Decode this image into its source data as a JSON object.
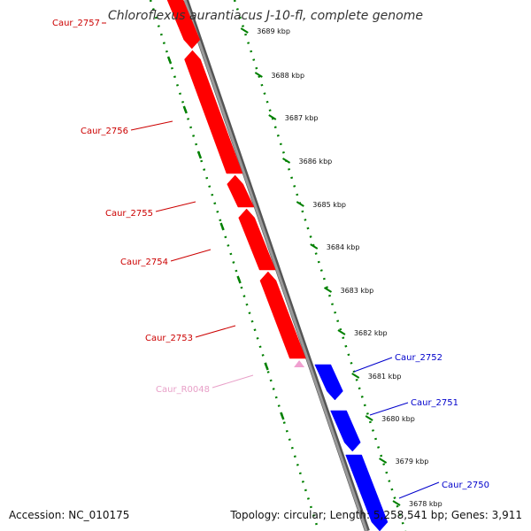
{
  "title": "Chloroflexus aurantiacus J-10-fl, complete genome",
  "footer": {
    "accession": "Accession: NC_010175",
    "summary": "Topology: circular; Length: 5,258,541 bp; Genes: 3,911"
  },
  "ticks": [
    "3689 kbp",
    "3688 kbp",
    "3687 kbp",
    "3686 kbp",
    "3685 kbp",
    "3684 kbp",
    "3683 kbp",
    "3682 kbp",
    "3681 kbp",
    "3680 kbp",
    "3679 kbp",
    "3678 kbp"
  ],
  "genes": [
    {
      "label": "Caur_2757",
      "strand": "reverse"
    },
    {
      "label": "Caur_2756",
      "strand": "reverse"
    },
    {
      "label": "Caur_2755",
      "strand": "reverse"
    },
    {
      "label": "Caur_2754",
      "strand": "reverse"
    },
    {
      "label": "Caur_2753",
      "strand": "reverse"
    },
    {
      "label": "Caur_R0048",
      "strand": "reverse-rna"
    },
    {
      "label": "Caur_2752",
      "strand": "forward"
    },
    {
      "label": "Caur_2751",
      "strand": "forward"
    },
    {
      "label": "Caur_2750",
      "strand": "forward"
    }
  ],
  "colors": {
    "reverse": "#ff0000",
    "reverse_label": "#cc0000",
    "rna": "#f0a0d0",
    "rna_label": "#e8a0c8",
    "forward": "#0000ff",
    "forward_label": "#0000cc",
    "backbone": "#888888",
    "ticks": "#008000"
  }
}
